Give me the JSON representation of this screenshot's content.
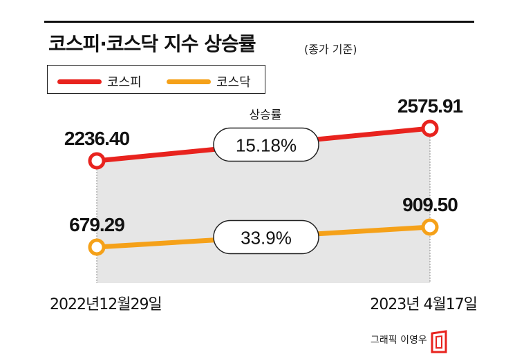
{
  "title": "코스피·코스닥 지수 상승률",
  "subtitle": "(종가 기준)",
  "credit": "그래픽 이영우",
  "colors": {
    "kospi": "#e8231e",
    "kosdaq": "#f5a119",
    "band": "#e6e6e6"
  },
  "chart_data": {
    "type": "line",
    "x": [
      "2022년12월29일",
      "2023년 4월17일"
    ],
    "series": [
      {
        "name": "코스피",
        "values": [
          2236.4,
          2575.91
        ],
        "labels": [
          "2236.40",
          "2575.91"
        ],
        "change": "15.18%"
      },
      {
        "name": "코스닥",
        "values": [
          679.29,
          909.5
        ],
        "labels": [
          "679.29",
          "909.50"
        ],
        "change": "33.9%"
      }
    ],
    "change_label": "상승률"
  }
}
